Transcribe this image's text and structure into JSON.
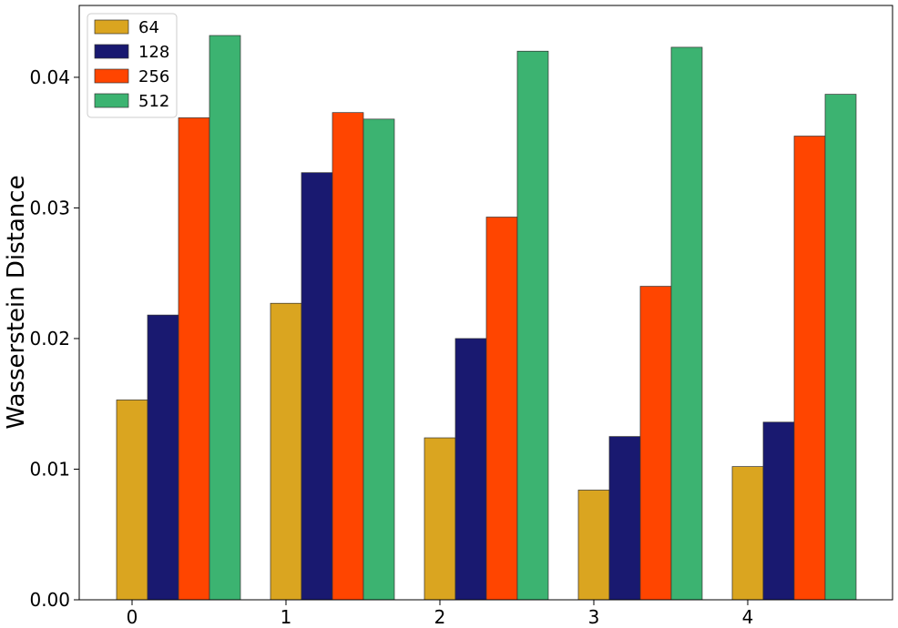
{
  "chart_data": {
    "type": "bar",
    "title": "",
    "xlabel": "",
    "ylabel": "Wasserstein Distance",
    "categories": [
      "0",
      "1",
      "2",
      "3",
      "4"
    ],
    "ylim": [
      0,
      0.0455
    ],
    "y_ticks": [
      "0.00",
      "0.01",
      "0.02",
      "0.03",
      "0.04"
    ],
    "grid": false,
    "legend_position": "top-left",
    "series": [
      {
        "name": "64",
        "color": "#DAA520",
        "values": [
          0.0153,
          0.0227,
          0.0124,
          0.0084,
          0.0102
        ]
      },
      {
        "name": "128",
        "color": "#191970",
        "values": [
          0.0218,
          0.0327,
          0.02,
          0.0125,
          0.0136
        ]
      },
      {
        "name": "256",
        "color": "#FF4500",
        "values": [
          0.0369,
          0.0373,
          0.0293,
          0.024,
          0.0355
        ]
      },
      {
        "name": "512",
        "color": "#3CB371",
        "values": [
          0.0432,
          0.0368,
          0.042,
          0.0423,
          0.0387
        ]
      }
    ]
  }
}
